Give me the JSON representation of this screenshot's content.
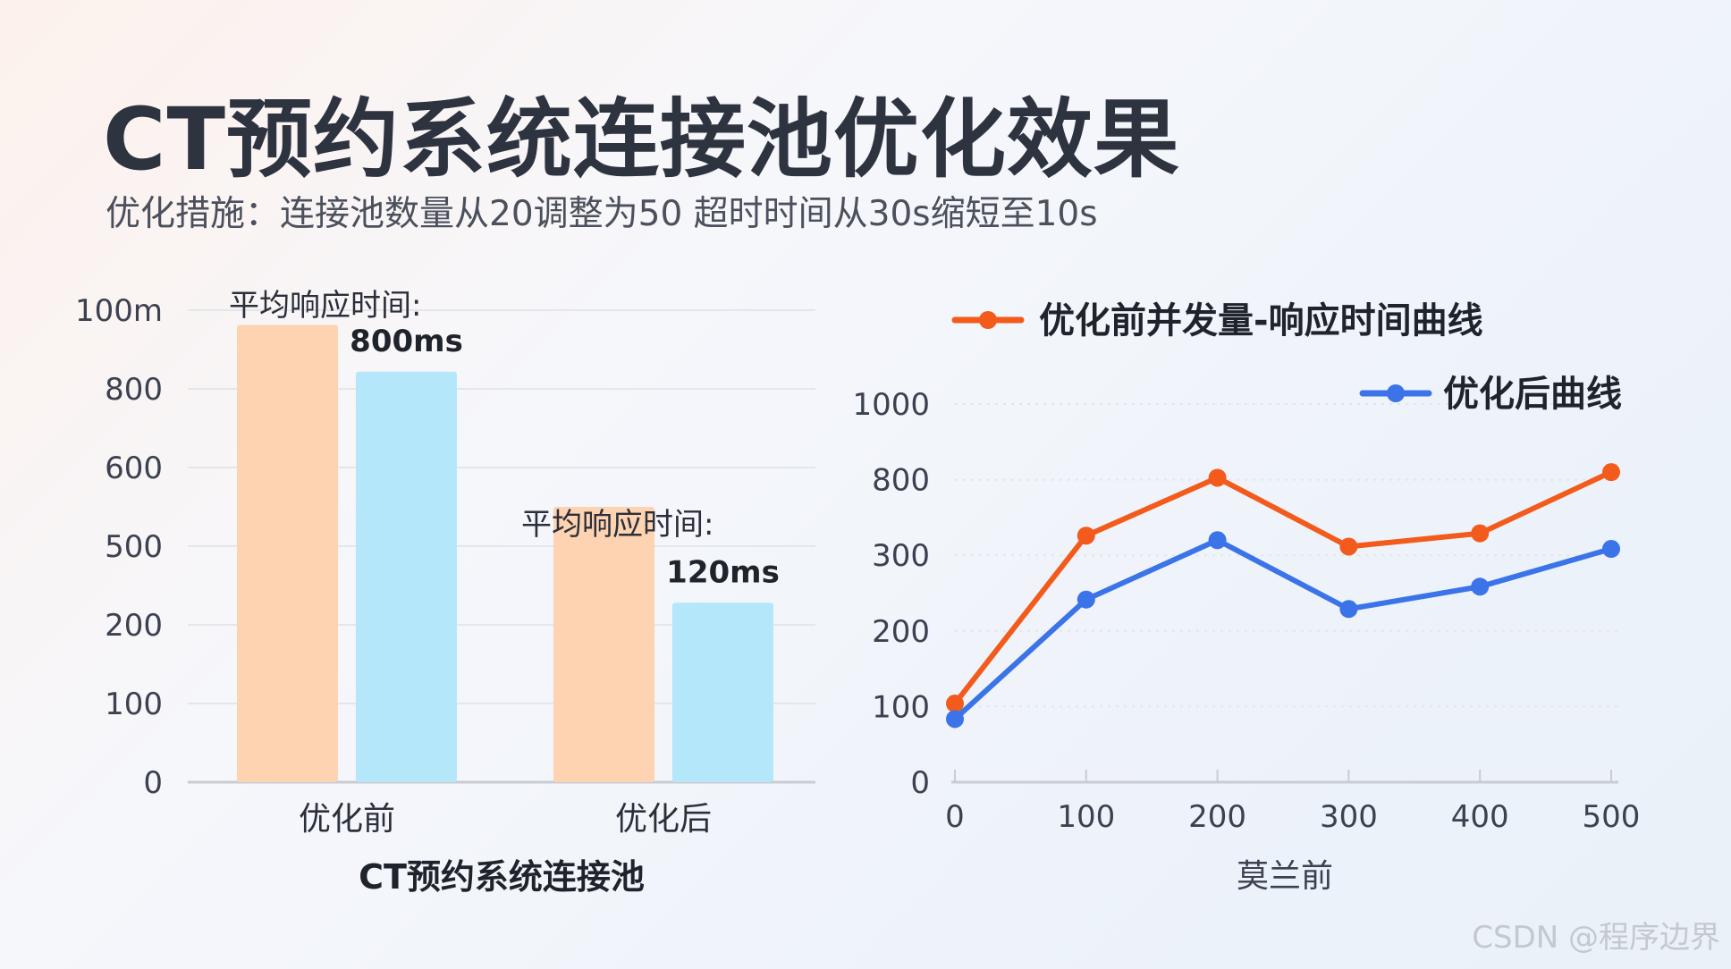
{
  "header": {
    "title": "CT预约系统连接池优化效果",
    "subtitle": "优化措施：连接池数量从20调整为50 超时时间从30s缩短至10s"
  },
  "watermark": "CSDN @程序边界",
  "colors": {
    "bar_before": "#fdd3b2",
    "bar_after": "#b4e7fa",
    "line_before": "#f25b1b",
    "line_after": "#3b73e8",
    "grid": "#e3e6ea",
    "axis_text": "#3c4150"
  },
  "chart_data": [
    {
      "type": "bar",
      "xlabel": "CT预约系统连接池",
      "categories": [
        "优化前",
        "优化后"
      ],
      "y_tick_labels": [
        "0",
        "100",
        "200",
        "500",
        "600",
        "800",
        "100m"
      ],
      "series": [
        {
          "values": [
            930,
            560
          ]
        },
        {
          "values": [
            835,
            365
          ]
        }
      ],
      "annotations": [
        {
          "category": "优化前",
          "label": "平均响应时间:",
          "value": "800ms"
        },
        {
          "category": "优化后",
          "label": "平均响应时间:",
          "value": "120ms"
        }
      ],
      "grid": true
    },
    {
      "type": "line",
      "x": [
        0,
        100,
        200,
        300,
        400,
        500
      ],
      "xlabel": "莫兰前",
      "y_tick_labels": [
        "0",
        "100",
        "200",
        "300",
        "800",
        "1000"
      ],
      "series": [
        {
          "name": "优化前并发量-响应时间曲线",
          "values": [
            208,
            652,
            805,
            623,
            658,
            820
          ]
        },
        {
          "name": "优化后曲线",
          "values": [
            167,
            483,
            640,
            458,
            517,
            617
          ]
        }
      ],
      "legend": "top",
      "grid": true
    }
  ]
}
